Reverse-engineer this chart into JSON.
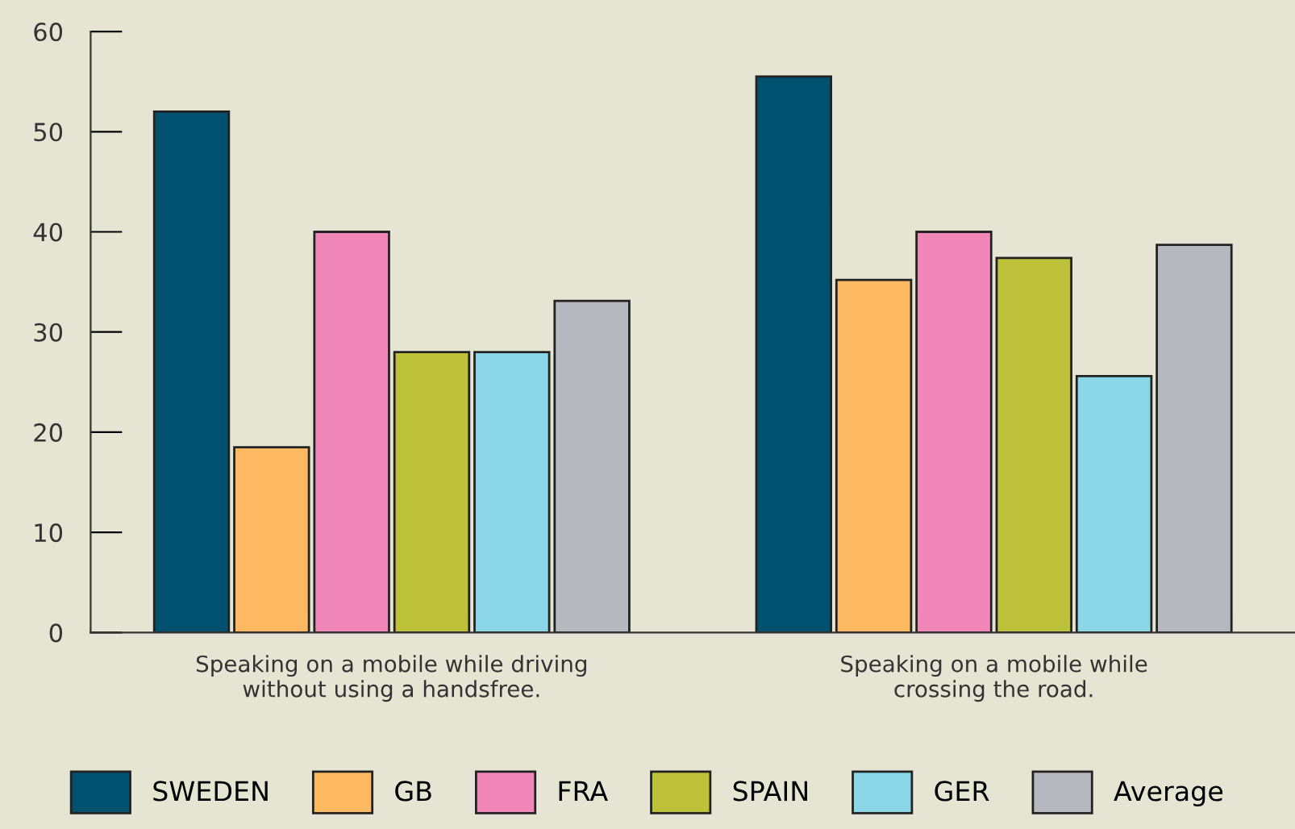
{
  "chart_data": {
    "type": "bar",
    "categories": [
      "Speaking on a mobile while driving\nwithout using a handsfree.",
      "Speaking on a mobile while\ncrossing the road."
    ],
    "series": [
      {
        "name": "SWEDEN",
        "color": "#00516f",
        "values": [
          52,
          55.5
        ]
      },
      {
        "name": "GB",
        "color": "#fdb862",
        "values": [
          18.5,
          35.2
        ]
      },
      {
        "name": "FRA",
        "color": "#f187b8",
        "values": [
          40,
          40
        ]
      },
      {
        "name": "SPAIN",
        "color": "#bdc13a",
        "values": [
          28,
          37.4
        ]
      },
      {
        "name": "GER",
        "color": "#8ad6e6",
        "values": [
          28,
          25.6
        ]
      },
      {
        "name": "Average",
        "color": "#b6b8bf",
        "values": [
          33.1,
          38.7
        ]
      }
    ],
    "ylim": [
      0,
      60
    ],
    "yticks": [
      0,
      10,
      20,
      30,
      40,
      50,
      60
    ],
    "grid": false,
    "legend": "bottom"
  }
}
